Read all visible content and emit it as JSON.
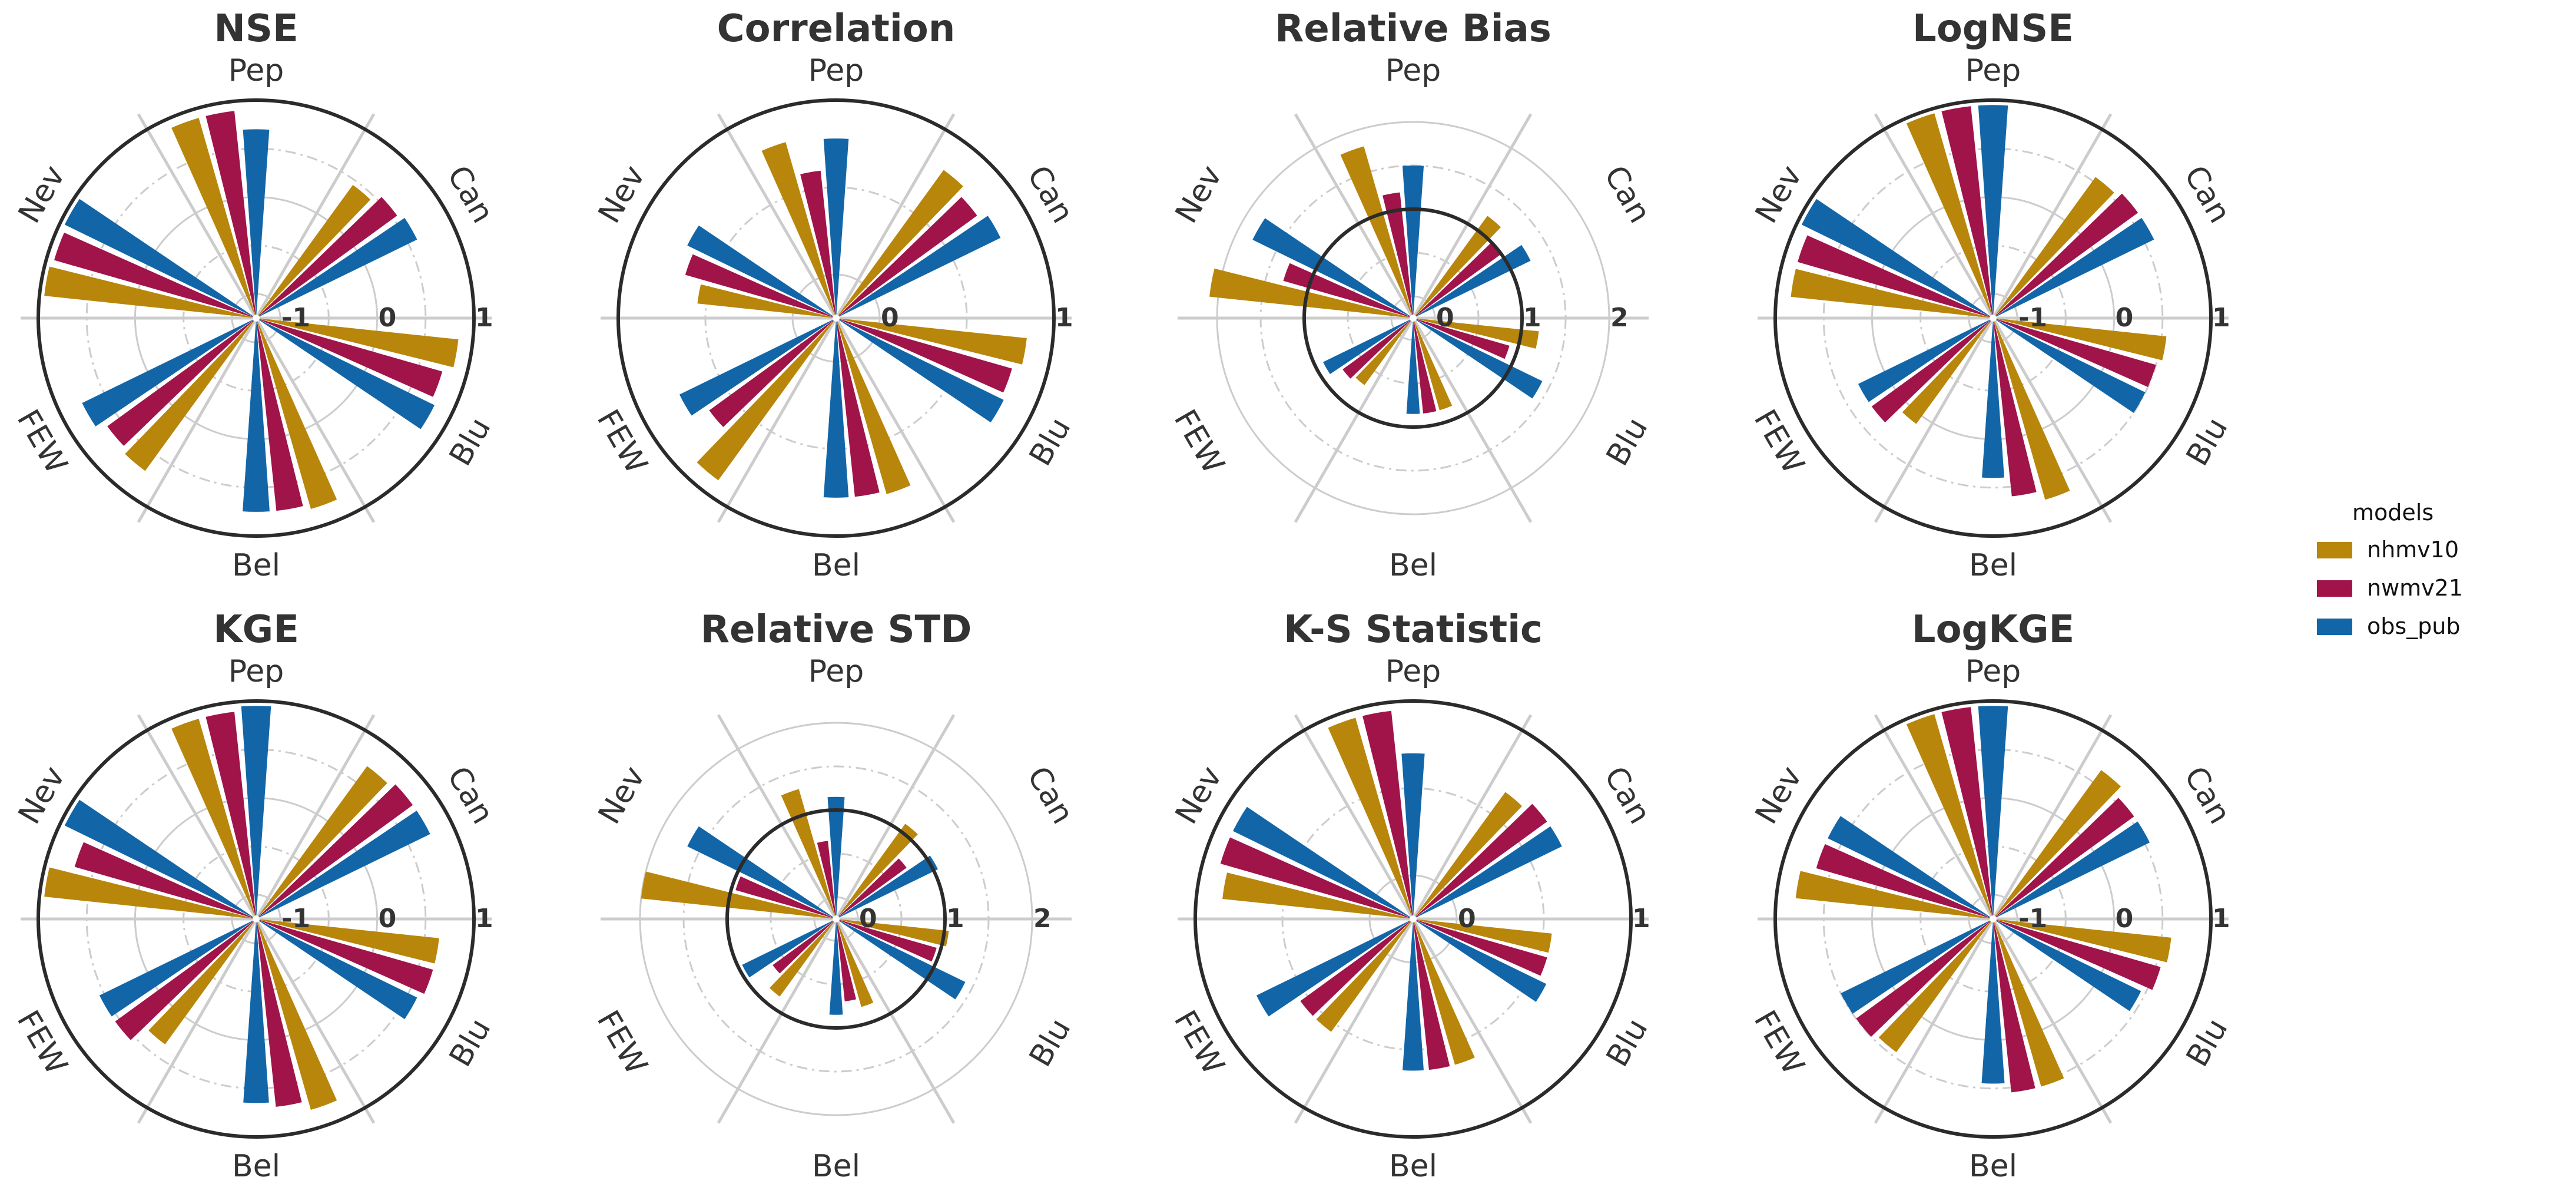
{
  "chart_data": {
    "legend": {
      "title": "models",
      "placement": "right",
      "items": [
        {
          "name": "nhmv10",
          "color": "#B8860B"
        },
        {
          "name": "nwmv21",
          "color": "#A0144A"
        },
        {
          "name": "obs_pub",
          "color": "#1266A8"
        }
      ]
    },
    "sites": [
      "Pep",
      "Can",
      "Blu",
      "Bel",
      "FEW",
      "Nev"
    ],
    "models": [
      "nhmv10",
      "nwmv21",
      "obs_pub"
    ],
    "colors": {
      "nhmv10": "#B8860B",
      "nwmv21": "#A0144A",
      "obs_pub": "#1266A8"
    },
    "charts": [
      {
        "type": "bar",
        "polar": true,
        "title": "NSE",
        "rlim": [
          -1.25,
          1
        ],
        "ticks": [
          {
            "value": -1,
            "label": "-1"
          },
          {
            "value": 0,
            "label": "0"
          },
          {
            "value": 1,
            "label": "1"
          }
        ],
        "reference_circle": 1,
        "series": [
          {
            "name": "nhmv10",
            "values": [
              0.9,
              0.45,
              0.85,
              0.8,
              0.7,
              0.95
            ]
          },
          {
            "name": "nwmv21",
            "values": [
              0.9,
              0.55,
              0.75,
              0.75,
              0.65,
              0.92
            ]
          },
          {
            "name": "obs_pub",
            "values": [
              0.7,
              0.6,
              0.8,
              0.75,
              0.75,
              0.95
            ]
          }
        ]
      },
      {
        "type": "bar",
        "polar": true,
        "title": "Correlation",
        "rlim": [
          -0.25,
          1
        ],
        "ticks": [
          {
            "value": 0,
            "label": "0"
          },
          {
            "value": 1,
            "label": "1"
          }
        ],
        "reference_circle": 1,
        "series": [
          {
            "name": "nhmv10",
            "values": [
              0.8,
              0.8,
              0.85,
              0.8,
              0.9,
              0.55
            ]
          },
          {
            "name": "nwmv21",
            "values": [
              0.6,
              0.75,
              0.8,
              0.78,
              0.65,
              0.65
            ]
          },
          {
            "name": "obs_pub",
            "values": [
              0.78,
              0.8,
              0.82,
              0.78,
              0.75,
              0.7
            ]
          }
        ]
      },
      {
        "type": "bar",
        "polar": true,
        "title": "Relative Bias",
        "rlim": [
          -0.25,
          2.25
        ],
        "ticks": [
          {
            "value": 0,
            "label": "0"
          },
          {
            "value": 1,
            "label": "1"
          },
          {
            "value": 2,
            "label": "2"
          }
        ],
        "reference_circle": 1,
        "series": [
          {
            "name": "nhmv10",
            "values": [
              1.8,
              1.2,
              1.2,
              0.85,
              0.7,
              2.1
            ]
          },
          {
            "name": "nwmv21",
            "values": [
              1.2,
              1.0,
              0.9,
              0.85,
              0.75,
              1.3
            ]
          },
          {
            "name": "obs_pub",
            "values": [
              1.5,
              1.25,
              1.4,
              0.85,
              0.9,
              1.8
            ]
          }
        ]
      },
      {
        "type": "bar",
        "polar": true,
        "title": "LogNSE",
        "rlim": [
          -1.25,
          1
        ],
        "ticks": [
          {
            "value": -1,
            "label": "-1"
          },
          {
            "value": 0,
            "label": "0"
          },
          {
            "value": 1,
            "label": "1"
          }
        ],
        "reference_circle": 1,
        "series": [
          {
            "name": "nhmv10",
            "values": [
              0.95,
              0.55,
              0.55,
              0.7,
              0.1,
              0.85
            ]
          },
          {
            "name": "nwmv21",
            "values": [
              0.95,
              0.6,
              0.5,
              0.6,
              0.3,
              0.85
            ]
          },
          {
            "name": "obs_pub",
            "values": [
              0.95,
              0.6,
              0.5,
              0.4,
              0.3,
              0.95
            ]
          }
        ]
      },
      {
        "type": "bar",
        "polar": true,
        "title": "KGE",
        "rlim": [
          -1.25,
          1
        ],
        "ticks": [
          {
            "value": -1,
            "label": "-1"
          },
          {
            "value": 0,
            "label": "0"
          },
          {
            "value": 1,
            "label": "1"
          }
        ],
        "reference_circle": 1,
        "series": [
          {
            "name": "nhmv10",
            "values": [
              0.9,
              0.7,
              0.65,
              0.8,
              0.35,
              0.95
            ]
          },
          {
            "name": "nwmv21",
            "values": [
              0.9,
              0.75,
              0.65,
              0.7,
              0.55,
              0.7
            ]
          },
          {
            "name": "obs_pub",
            "values": [
              0.95,
              0.75,
              0.6,
              0.65,
              0.55,
              0.95
            ]
          }
        ]
      },
      {
        "type": "bar",
        "polar": true,
        "title": "Relative STD",
        "rlim": [
          -0.25,
          2.25
        ],
        "ticks": [
          {
            "value": 0,
            "label": "0"
          },
          {
            "value": 1,
            "label": "1"
          },
          {
            "value": 2,
            "label": "2"
          }
        ],
        "reference_circle": 1,
        "series": [
          {
            "name": "nhmv10",
            "values": [
              1.3,
              1.1,
              1.05,
              0.8,
              0.85,
              2.0
            ]
          },
          {
            "name": "nwmv21",
            "values": [
              0.65,
              0.75,
              0.95,
              0.7,
              0.65,
              0.95
            ]
          },
          {
            "name": "obs_pub",
            "values": [
              1.15,
              1.05,
              1.4,
              0.85,
              0.95,
              1.65
            ]
          }
        ]
      },
      {
        "type": "bar",
        "polar": true,
        "title": "K-S Statistic",
        "rlim": [
          -0.25,
          1
        ],
        "ticks": [
          {
            "value": 0,
            "label": "0"
          },
          {
            "value": 1,
            "label": "1"
          }
        ],
        "reference_circle": 1,
        "series": [
          {
            "name": "nhmv10",
            "values": [
              0.95,
              0.65,
              0.55,
              0.62,
              0.55,
              0.85
            ]
          },
          {
            "name": "nwmv21",
            "values": [
              0.95,
              0.7,
              0.55,
              0.62,
              0.55,
              0.9
            ]
          },
          {
            "name": "obs_pub",
            "values": [
              0.7,
              0.7,
              0.6,
              0.62,
              0.75,
              0.9
            ]
          }
        ]
      },
      {
        "type": "bar",
        "polar": true,
        "title": "LogKGE",
        "rlim": [
          -1.25,
          1
        ],
        "ticks": [
          {
            "value": -1,
            "label": "-1"
          },
          {
            "value": 0,
            "label": "0"
          },
          {
            "value": 1,
            "label": "1"
          }
        ],
        "reference_circle": 1,
        "series": [
          {
            "name": "nhmv10",
            "values": [
              0.95,
              0.65,
              0.6,
              0.55,
              0.45,
              0.8
            ]
          },
          {
            "name": "nwmv21",
            "values": [
              0.95,
              0.55,
              0.55,
              0.55,
              0.5,
              0.65
            ]
          },
          {
            "name": "obs_pub",
            "values": [
              0.95,
              0.55,
              0.45,
              0.45,
              0.5,
              0.65
            ]
          }
        ]
      }
    ]
  }
}
